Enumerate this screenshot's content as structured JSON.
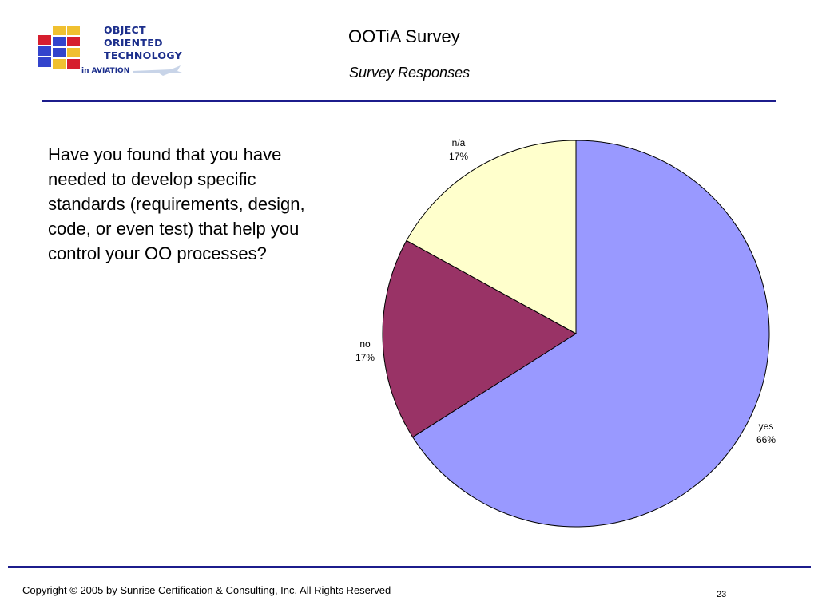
{
  "header": {
    "logo_lines": [
      "OBJECT",
      "ORIENTED",
      "TECHNOLOGY"
    ],
    "logo_sub": "in AVIATION",
    "title": "OOTiA Survey",
    "subtitle": "Survey Responses"
  },
  "question": "Have you found that you have needed to develop specific standards (requirements, design, code, or even test) that help you control your OO processes?",
  "footer": {
    "copyright": "Copyright © 2005 by Sunrise Certification & Consulting, Inc.  All Rights Reserved",
    "page_number": "23"
  },
  "colors": {
    "yes": "#9999ff",
    "no": "#993366",
    "na": "#ffffcc",
    "rule": "#1c1c8c",
    "logo_text": "#1c2f8c"
  },
  "chart_data": {
    "type": "pie",
    "title": "",
    "slices": [
      {
        "label": "yes",
        "value": 66,
        "display": "66%"
      },
      {
        "label": "no",
        "value": 17,
        "display": "17%"
      },
      {
        "label": "n/a",
        "value": 17,
        "display": "17%"
      }
    ]
  }
}
